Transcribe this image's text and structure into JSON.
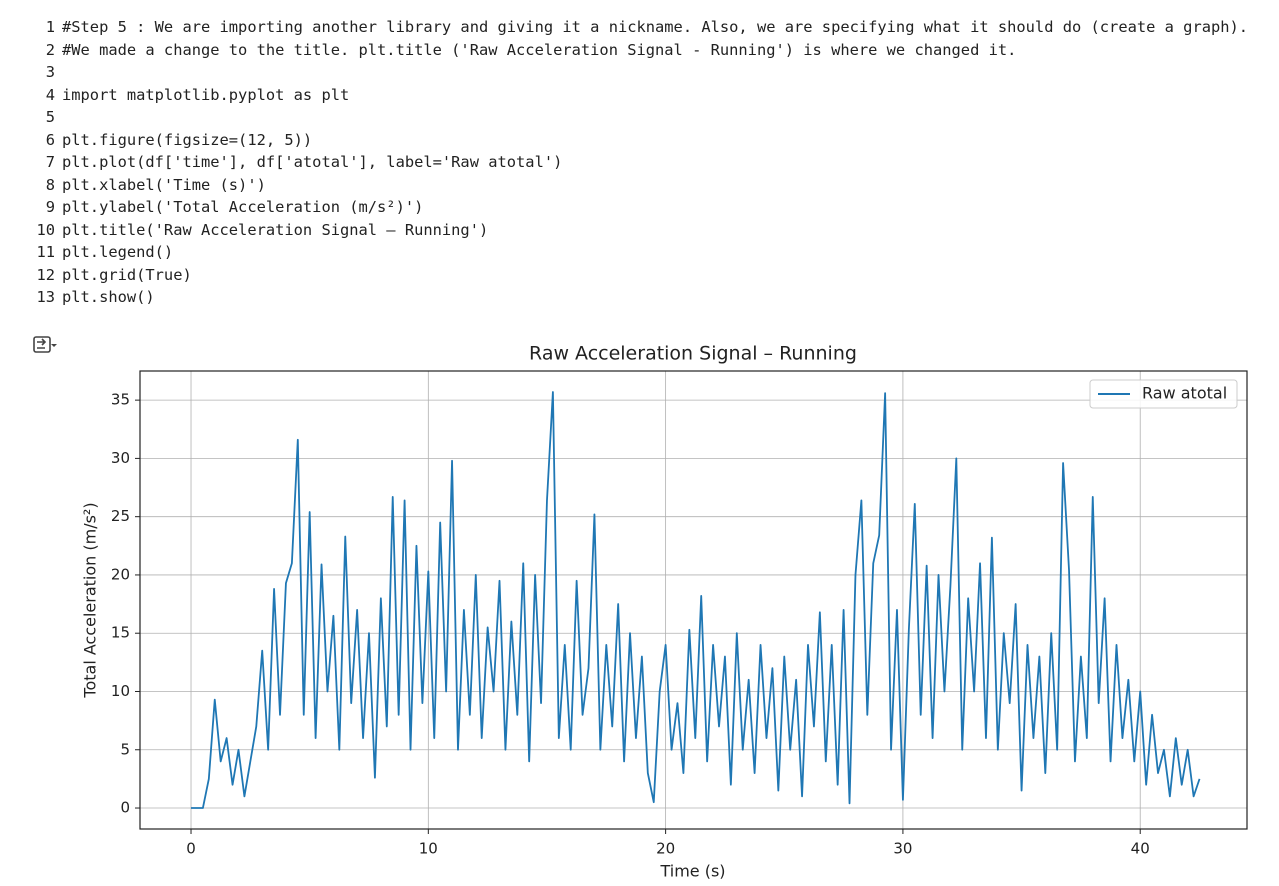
{
  "code": {
    "lines": [
      {
        "number": "1",
        "text": "#Step 5 : We are importing another library and giving it a nickname. Also, we are specifying what it should do (create a graph)."
      },
      {
        "number": "2",
        "text": "#We made a change to the title. plt.title ('Raw Acceleration Signal - Running') is where we changed it."
      },
      {
        "number": "3"
      },
      {
        "number": "4",
        "text": "import matplotlib.pyplot as plt"
      },
      {
        "number": "5"
      },
      {
        "number": "6",
        "text": "plt.figure(figsize=(12, 5))"
      },
      {
        "number": "7",
        "text": "plt.plot(df['time'], df['atotal'], label='Raw atotal')"
      },
      {
        "number": "8",
        "text": "plt.xlabel('Time (s)')"
      },
      {
        "number": "9",
        "text": "plt.ylabel('Total Acceleration (m/s²)')"
      },
      {
        "number": "10",
        "text": "plt.title('Raw Acceleration Signal – Running')"
      },
      {
        "number": "11",
        "text": "plt.legend()"
      },
      {
        "number": "12",
        "text": "plt.grid(True)"
      },
      {
        "number": "13",
        "text": "plt.show()"
      }
    ]
  },
  "chart_data": {
    "type": "line",
    "title": "Raw Acceleration Signal – Running",
    "x_label": "Time (s)",
    "y_label": "Total Acceleration (m/s²)",
    "xlim": [
      -2.15,
      44.5
    ],
    "ylim": [
      -1.8,
      37.5
    ],
    "xticks": [
      0,
      10,
      20,
      30,
      40
    ],
    "yticks": [
      0,
      5,
      10,
      15,
      20,
      25,
      30,
      35
    ],
    "grid": true,
    "legend": "upper right",
    "x": [
      0,
      0.25,
      0.5,
      0.75,
      1,
      1.25,
      1.5,
      1.75,
      2,
      2.25,
      2.5,
      2.75,
      3,
      3.25,
      3.5,
      3.75,
      4,
      4.25,
      4.5,
      4.75,
      5,
      5.25,
      5.5,
      5.75,
      6,
      6.25,
      6.5,
      6.75,
      7,
      7.25,
      7.5,
      7.75,
      8,
      8.25,
      8.5,
      8.75,
      9,
      9.25,
      9.5,
      9.75,
      10,
      10.25,
      10.5,
      10.75,
      11,
      11.25,
      11.5,
      11.75,
      12,
      12.25,
      12.5,
      12.75,
      13,
      13.25,
      13.5,
      13.75,
      14,
      14.25,
      14.5,
      14.75,
      15,
      15.25,
      15.5,
      15.75,
      16,
      16.25,
      16.5,
      16.75,
      17,
      17.25,
      17.5,
      17.75,
      18,
      18.25,
      18.5,
      18.75,
      19,
      19.25,
      19.5,
      19.75,
      20,
      20.25,
      20.5,
      20.75,
      21,
      21.25,
      21.5,
      21.75,
      22,
      22.25,
      22.5,
      22.75,
      23,
      23.25,
      23.5,
      23.75,
      24,
      24.25,
      24.5,
      24.75,
      25,
      25.25,
      25.5,
      25.75,
      26,
      26.25,
      26.5,
      26.75,
      27,
      27.25,
      27.5,
      27.75,
      28,
      28.25,
      28.5,
      28.75,
      29,
      29.25,
      29.5,
      29.75,
      30,
      30.25,
      30.5,
      30.75,
      31,
      31.25,
      31.5,
      31.75,
      32,
      32.25,
      32.5,
      32.75,
      33,
      33.25,
      33.5,
      33.75,
      34,
      34.25,
      34.5,
      34.75,
      35,
      35.25,
      35.5,
      35.75,
      36,
      36.25,
      36.5,
      36.75,
      37,
      37.25,
      37.5,
      37.75,
      38,
      38.25,
      38.5,
      38.75,
      39,
      39.25,
      39.5,
      39.75,
      40,
      40.25,
      40.5,
      40.75,
      41,
      41.25,
      41.5,
      41.75,
      42,
      42.25,
      42.5
    ],
    "series": [
      {
        "name": "Raw atotal",
        "color": "#1f77b4",
        "values": [
          0,
          0,
          0,
          2.5,
          9.3,
          4,
          6,
          2,
          5,
          1,
          4,
          7,
          13.5,
          5,
          18.8,
          8,
          19.3,
          21,
          31.6,
          8,
          25.4,
          6,
          20.9,
          10,
          16.5,
          5,
          23.3,
          9,
          17,
          6,
          15,
          2.6,
          18,
          7,
          26.7,
          8,
          26.4,
          5,
          22.5,
          9,
          20.3,
          6,
          24.5,
          10,
          29.8,
          5,
          17,
          8,
          20,
          6,
          15.5,
          10,
          19.5,
          5,
          16,
          8,
          21,
          4,
          20,
          9,
          26.4,
          35.7,
          6,
          14,
          5,
          19.5,
          8,
          12,
          25.2,
          5,
          14,
          7,
          17.5,
          4,
          15,
          6,
          13,
          3,
          0.5,
          10,
          14,
          5,
          9,
          3,
          15.3,
          6,
          18.2,
          4,
          14,
          7,
          13,
          2,
          15,
          5,
          11,
          3,
          14,
          6,
          12,
          1.5,
          13,
          5,
          11,
          1,
          14,
          7,
          16.8,
          4,
          14,
          2,
          17,
          0.4,
          20,
          26.4,
          8,
          21,
          23.4,
          35.6,
          5,
          17,
          0.7,
          15.3,
          26.1,
          8,
          20.8,
          6,
          20,
          10,
          19,
          30,
          5,
          18,
          10,
          21,
          6,
          23.2,
          5,
          15,
          9,
          17.5,
          1.5,
          14,
          6,
          13,
          3,
          15,
          5,
          29.6,
          20.4,
          4,
          13,
          6,
          26.7,
          9,
          18,
          4,
          14,
          6,
          11,
          4,
          10,
          2,
          8,
          3,
          5,
          1,
          6,
          2,
          5,
          1,
          2.5
        ]
      }
    ]
  }
}
